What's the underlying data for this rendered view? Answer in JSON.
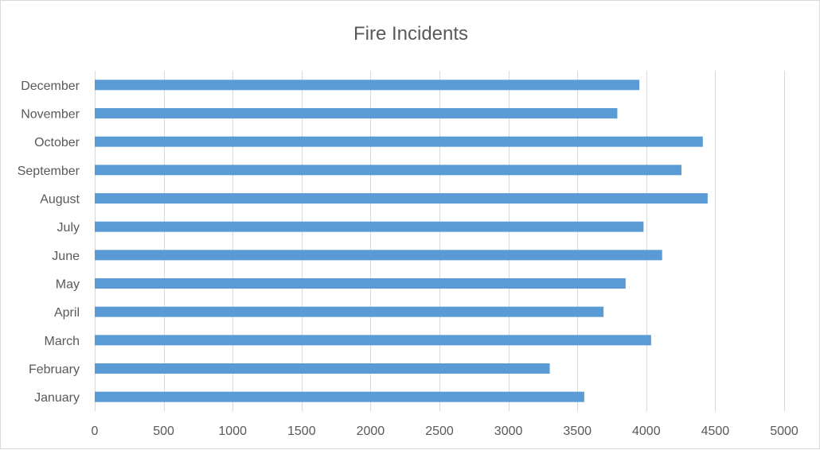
{
  "chart_data": {
    "type": "bar",
    "orientation": "horizontal",
    "title": "Fire Incidents",
    "xlabel": "",
    "ylabel": "",
    "categories": [
      "January",
      "February",
      "March",
      "April",
      "May",
      "June",
      "July",
      "August",
      "September",
      "October",
      "November",
      "December"
    ],
    "values": [
      3550,
      3300,
      4035,
      3690,
      3850,
      4115,
      3980,
      4445,
      4255,
      4410,
      3790,
      3950
    ],
    "xlim": [
      0,
      5000
    ],
    "xticks": [
      0,
      500,
      1000,
      1500,
      2000,
      2500,
      3000,
      3500,
      4000,
      4500,
      5000
    ],
    "grid": "vertical",
    "legend": "none",
    "bar_color": "#5b9bd5",
    "grid_color": "#d9d9d9"
  }
}
